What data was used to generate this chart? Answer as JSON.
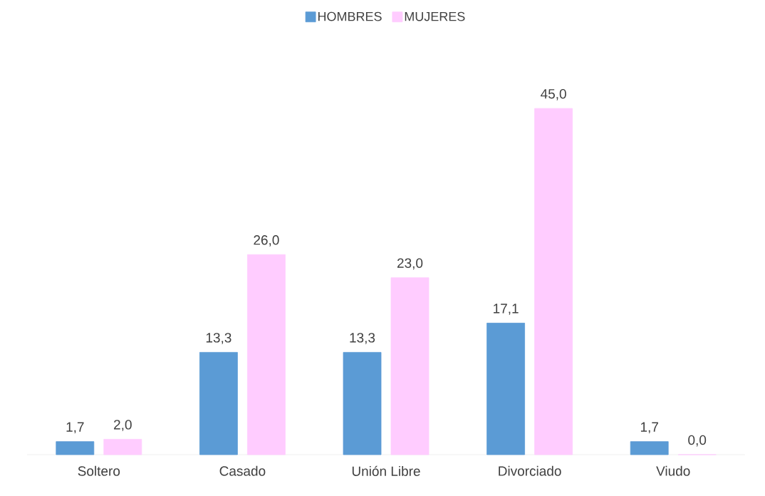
{
  "chart_data": {
    "type": "bar",
    "categories": [
      "Soltero",
      "Casado",
      "Unión Libre",
      "Divorciado",
      "Viudo"
    ],
    "series": [
      {
        "name": "HOMBRES",
        "color": "#5b9bd5",
        "values": [
          1.7,
          13.3,
          13.3,
          17.1,
          1.7
        ],
        "value_labels": [
          "1,7",
          "13,3",
          "13,3",
          "17,1",
          "1,7"
        ]
      },
      {
        "name": "MUJERES",
        "color": "#ffccff",
        "values": [
          2.0,
          26.0,
          23.0,
          45.0,
          0.0
        ],
        "value_labels": [
          "2,0",
          "26,0",
          "23,0",
          "45,0",
          "0,0"
        ]
      }
    ],
    "legend": "top"
  }
}
